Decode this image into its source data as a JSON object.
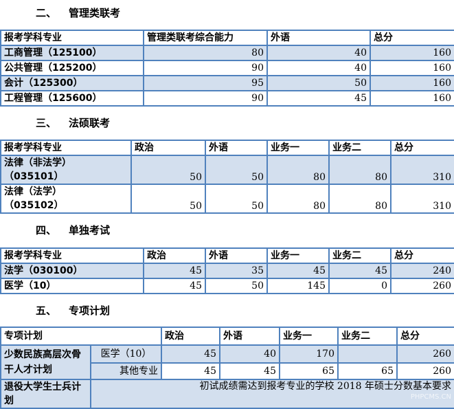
{
  "s2": {
    "num": "二、",
    "title": "管理类联考",
    "headers": [
      "报考学科专业",
      "管理类联考综合能力",
      "外语",
      "总分"
    ],
    "rows": [
      [
        "工商管理（125100）",
        "80",
        "40",
        "160"
      ],
      [
        "公共管理（125200）",
        "90",
        "40",
        "160"
      ],
      [
        "会计（125300）",
        "95",
        "50",
        "160"
      ],
      [
        "工程管理（125600）",
        "90",
        "45",
        "160"
      ]
    ]
  },
  "s3": {
    "num": "三、",
    "title": "法硕联考",
    "headers": [
      "报考学科专业",
      "政治",
      "外语",
      "业务一",
      "业务二",
      "总分"
    ],
    "rows": [
      [
        "法律（非法学）",
        "（035101）",
        "50",
        "50",
        "80",
        "80",
        "310"
      ],
      [
        "法律（法学）",
        "（035102）",
        "50",
        "50",
        "80",
        "80",
        "310"
      ]
    ]
  },
  "s4": {
    "num": "四、",
    "title": "单独考试",
    "headers": [
      "报考学科专业",
      "政治",
      "外语",
      "业务一",
      "业务二",
      "总分"
    ],
    "rows": [
      [
        "法学（030100）",
        "45",
        "35",
        "45",
        "45",
        "240"
      ],
      [
        "医学（10）",
        "45",
        "50",
        "145",
        "0",
        "260"
      ]
    ]
  },
  "s5": {
    "num": "五、",
    "title": "专项计划",
    "headers": [
      "专项计划",
      "政治",
      "外语",
      "业务一",
      "业务二",
      "总分"
    ],
    "group": "少数民族高层次骨干人才计划",
    "rows": [
      [
        "医学（10）",
        "45",
        "40",
        "170",
        "",
        "260"
      ],
      [
        "其他专业",
        "45",
        "45",
        "65",
        "65",
        "260"
      ]
    ],
    "veteran": "退役大学生士兵计划",
    "note": "初试成绩需达到报考专业的学校 2018 年硕士分数基本要求"
  },
  "watermark": "PHPCMS.CN",
  "colors": {
    "border": "#4f81bd",
    "shade": "#d3dfee"
  }
}
